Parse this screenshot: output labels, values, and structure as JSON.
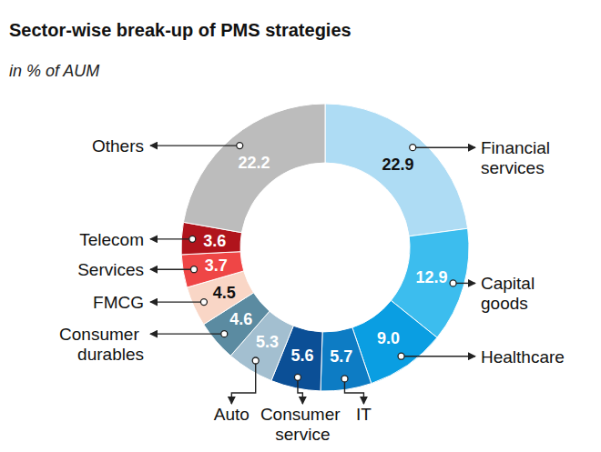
{
  "chart_data": {
    "type": "donut",
    "title": "Sector-wise break-up of PMS strategies",
    "subtitle": "in % of AUM",
    "categories": [
      "Financial services",
      "Capital goods",
      "Healthcare",
      "IT",
      "Consumer service",
      "Auto",
      "Consumer durables",
      "FMCG",
      "Services",
      "Telecom",
      "Others"
    ],
    "values": [
      22.9,
      12.9,
      9.0,
      5.7,
      5.6,
      5.3,
      4.6,
      4.5,
      3.7,
      3.6,
      22.2
    ],
    "value_labels": [
      "22.9",
      "12.9",
      "9.0",
      "5.7",
      "5.6",
      "5.3",
      "4.6",
      "4.5",
      "3.7",
      "3.6",
      "22.2"
    ],
    "colors": [
      "#aedcf4",
      "#3cbdee",
      "#0a9ee2",
      "#0d7cc4",
      "#0b4f96",
      "#a3bfd0",
      "#5b8ba1",
      "#f9d6c6",
      "#ef4646",
      "#b0141c",
      "#bcbcbc"
    ],
    "data_labels": true
  }
}
